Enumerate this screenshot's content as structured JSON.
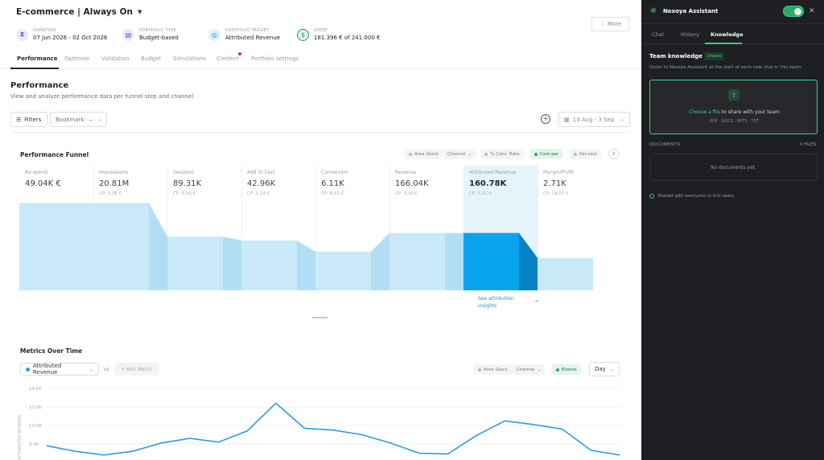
{
  "header": {
    "title": "E-commerce | Always On",
    "more_label": "More",
    "meta": [
      {
        "label": "DURATION",
        "value": "07 Jun 2026 - 02 Oct 2026",
        "icon": "hourglass-icon",
        "color": "#6b4fd8",
        "bg": "#ece8fb"
      },
      {
        "label": "PORTFOLIO TYPE",
        "value": "Budget-based",
        "icon": "wallet-icon",
        "color": "#6b4fd8",
        "bg": "#ece8fb"
      },
      {
        "label": "PORTFOLIO TARGET",
        "value": "Attributed Revenue",
        "icon": "target-icon",
        "color": "#1a8fe3",
        "bg": "#e2f1fc"
      },
      {
        "label": "SPENT",
        "value": "181.396 € of 241.000 €",
        "icon": "dollar-icon",
        "color": "#1d9a55",
        "bg": "#e3f5ea"
      }
    ]
  },
  "tabs": [
    "Performance",
    "Optimize",
    "Validation",
    "Budget",
    "Simulations",
    "Content",
    "Portfolio settings"
  ],
  "performance": {
    "title": "Performance",
    "subtitle": "View and analyze performance data per funnel step and channel.",
    "filters_label": "Filters",
    "bookmark_label": "Bookmark:",
    "bookmark_value": "–",
    "date_range": "13 Aug - 3 Sep"
  },
  "funnel": {
    "title": "Performance Funnel",
    "chips": [
      "Area Stack",
      "Channel",
      "% Conv. Rate",
      "Cost-per",
      "Per-cost"
    ],
    "stages": [
      {
        "name": "Ad spend",
        "value": "49.04K €",
        "cp": "",
        "level": 0.7
      },
      {
        "name": "Impressions",
        "value": "20.81M",
        "cp": "CP: 2,36 €",
        "level": 0.7
      },
      {
        "name": "Sessions",
        "value": "89.31K",
        "cp": "CP: 0,55 €",
        "level": 0.43
      },
      {
        "name": "Add To Cart",
        "value": "42.96K",
        "cp": "CP: 1,14 €",
        "level": 0.4
      },
      {
        "name": "Conversion",
        "value": "6.11K",
        "cp": "CP: 8,02 €",
        "level": 0.31
      },
      {
        "name": "Revenue",
        "value": "166.04K",
        "cp": "CP: 0,30 €",
        "level": 0.46
      },
      {
        "name": "Attributed Revenue",
        "value": "160.78K",
        "cp": "CP: 0,31 €",
        "level": 0.46
      },
      {
        "name": "Margin/Profit",
        "value": "2.71K",
        "cp": "CP: 18,07 €",
        "level": 0.26
      }
    ],
    "highlight_index": 6,
    "insights_label_1": "See attribution",
    "insights_label_2": "insights"
  },
  "metrics": {
    "title": "Metrics Over Time",
    "metric_label": "Attributed Revenue",
    "vs_label": "vs",
    "add_metric_label": "+ Add Metric",
    "chips": [
      "Area Stack",
      "Channel",
      "Events"
    ],
    "granularity": "Day",
    "y_axis_label": "ATTRIBUTED REVENUE",
    "y_ticks": [
      "14.0K",
      "12.0K",
      "10.0K",
      "8.0K"
    ]
  },
  "chart_data": {
    "type": "line",
    "title": "Metrics Over Time",
    "ylabel": "ATTRIBUTED REVENUE",
    "ylim": [
      7000,
      14000
    ],
    "y_ticks": [
      8000,
      10000,
      12000,
      14000
    ],
    "grid": true,
    "series": [
      {
        "name": "Attributed Revenue",
        "color": "#2b9be8",
        "values": [
          7800,
          7200,
          6800,
          7200,
          8100,
          8600,
          8200,
          9400,
          12400,
          9700,
          9500,
          9000,
          8100,
          7000,
          6900,
          8900,
          10500,
          10100,
          9600,
          7300,
          6800
        ]
      }
    ]
  },
  "sidebar": {
    "title": "Nexoya Assistant",
    "tabs": [
      "Chat",
      "History",
      "Knowledge"
    ],
    "heading": "Team knowledge",
    "badge": "shared",
    "description": "Given to Nexoya Assistant at the start of each new chat in this team.",
    "upload_link": "Choose a file",
    "upload_text": " to share with your team",
    "formats": "PDF · DOCX · PPTX · TXT",
    "documents_label": "DOCUMENTS",
    "documents_count": "0 FILES",
    "empty_text": "No documents yet.",
    "shared_note": "Shared with everyone in this team.",
    "accent": "#3ecf8e"
  }
}
